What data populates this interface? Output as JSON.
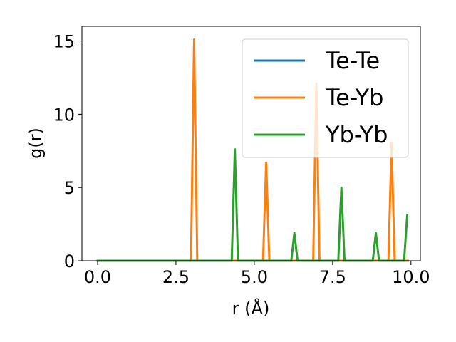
{
  "chart_data": {
    "type": "line",
    "title": "",
    "xlabel": "r (Å)",
    "ylabel": "g(r)",
    "xlim": [
      -0.5,
      10.3
    ],
    "ylim": [
      0,
      16
    ],
    "xticks": [
      0.0,
      2.5,
      5.0,
      7.5,
      10.0
    ],
    "xtick_labels": [
      "0.0",
      "2.5",
      "5.0",
      "7.5",
      "10.0"
    ],
    "yticks": [
      0,
      5,
      10,
      15
    ],
    "ytick_labels": [
      "0",
      "5",
      "10",
      "15"
    ],
    "grid": false,
    "legend_position": "top-right",
    "series": [
      {
        "name": "Te-Te",
        "color": "#1f77b4",
        "x": [
          0.0,
          9.9
        ],
        "y": [
          0,
          0
        ]
      },
      {
        "name": "Te-Yb",
        "color": "#ff7f0e",
        "x": [
          0.0,
          2.98,
          3.08,
          3.18,
          5.28,
          5.38,
          5.48,
          6.88,
          6.98,
          7.08,
          9.28,
          9.38,
          9.48,
          9.9
        ],
        "y": [
          0,
          0,
          15.1,
          0,
          0,
          6.7,
          0,
          0,
          12.1,
          0,
          0,
          8.0,
          0,
          0
        ]
      },
      {
        "name": "Yb-Yb",
        "color": "#2ca02c",
        "x": [
          0.0,
          4.28,
          4.38,
          4.48,
          6.18,
          6.28,
          6.38,
          7.68,
          7.78,
          7.88,
          8.78,
          8.88,
          8.98,
          9.78,
          9.88
        ],
        "y": [
          0,
          0,
          7.6,
          0,
          0,
          1.9,
          0,
          0,
          5.0,
          0,
          0,
          1.9,
          0,
          0,
          3.1
        ]
      }
    ]
  }
}
